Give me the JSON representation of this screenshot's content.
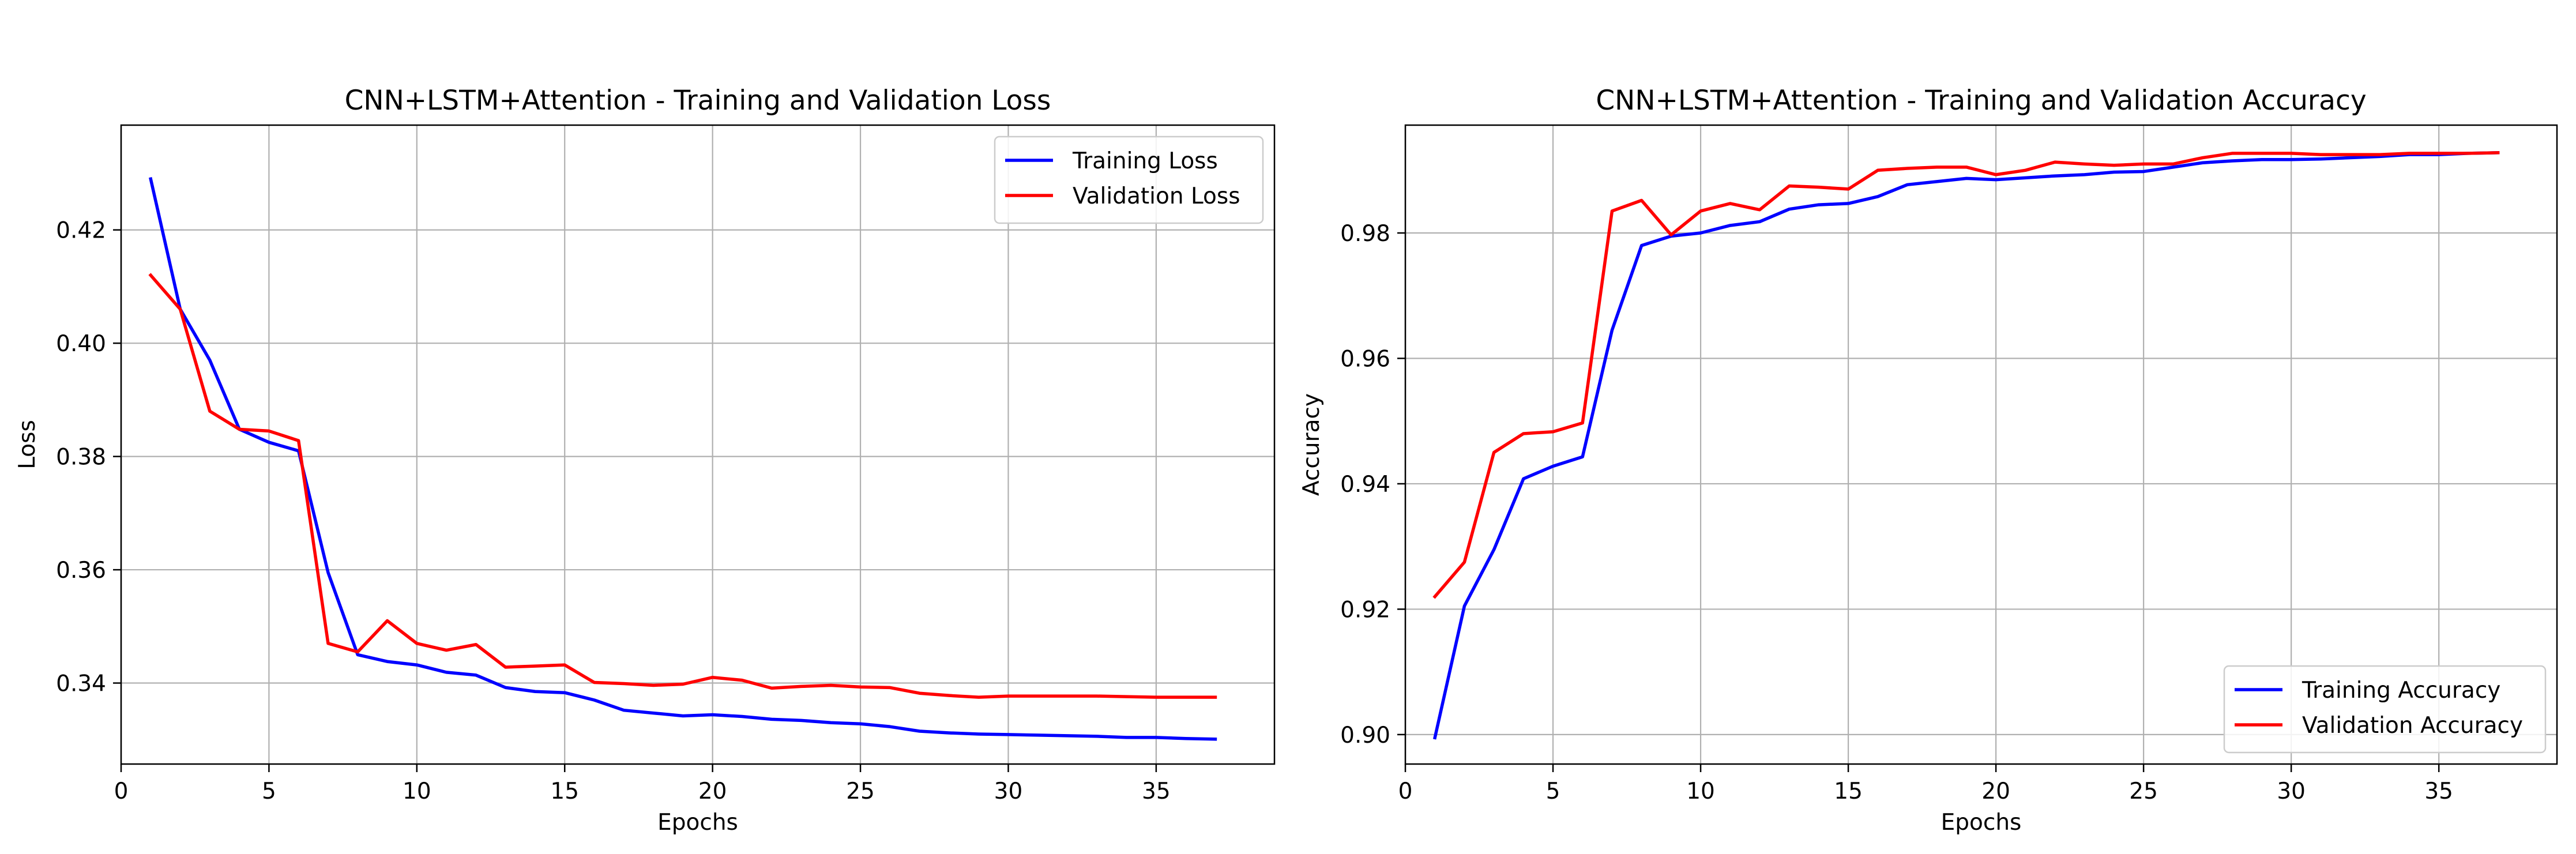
{
  "chart_data": [
    {
      "type": "line",
      "title": "CNN+LSTM+Attention - Training and Validation Loss",
      "xlabel": "Epochs",
      "ylabel": "Loss",
      "xlim": [
        0,
        39
      ],
      "ylim": [
        0.3257,
        0.4385
      ],
      "xticks": [
        0,
        5,
        10,
        15,
        20,
        25,
        30,
        35
      ],
      "yticks": [
        0.34,
        0.36,
        0.38,
        0.4,
        0.42
      ],
      "ytick_labels": [
        "0.34",
        "0.36",
        "0.38",
        "0.40",
        "0.42"
      ],
      "grid": true,
      "legend_position": "top-right",
      "x": [
        1,
        2,
        3,
        4,
        5,
        6,
        7,
        8,
        9,
        10,
        11,
        12,
        13,
        14,
        15,
        16,
        17,
        18,
        19,
        20,
        21,
        22,
        23,
        24,
        25,
        26,
        27,
        28,
        29,
        30,
        31,
        32,
        33,
        34,
        35,
        36,
        37
      ],
      "series": [
        {
          "name": "Training Loss",
          "color": "#0000ff",
          "values": [
            0.429,
            0.406,
            0.397,
            0.3848,
            0.3825,
            0.381,
            0.3595,
            0.345,
            0.3438,
            0.3432,
            0.3419,
            0.3414,
            0.3392,
            0.3385,
            0.3383,
            0.337,
            0.3352,
            0.3347,
            0.3342,
            0.3344,
            0.3341,
            0.3336,
            0.3334,
            0.333,
            0.3328,
            0.3323,
            0.3315,
            0.3312,
            0.331,
            0.3309,
            0.3308,
            0.3307,
            0.3306,
            0.3304,
            0.3304,
            0.3302,
            0.3301
          ]
        },
        {
          "name": "Validation Loss",
          "color": "#ff0000",
          "values": [
            0.412,
            0.406,
            0.388,
            0.3848,
            0.3845,
            0.3828,
            0.347,
            0.3455,
            0.351,
            0.347,
            0.3458,
            0.3468,
            0.3428,
            0.343,
            0.3432,
            0.3401,
            0.3399,
            0.3396,
            0.3398,
            0.341,
            0.3405,
            0.3391,
            0.3394,
            0.3396,
            0.3393,
            0.3392,
            0.3382,
            0.3378,
            0.3375,
            0.3377,
            0.3377,
            0.3377,
            0.3377,
            0.3376,
            0.3375,
            0.3375,
            0.3375
          ]
        }
      ]
    },
    {
      "type": "line",
      "title": "CNN+LSTM+Attention - Training and Validation Accuracy",
      "xlabel": "Epochs",
      "ylabel": "Accuracy",
      "xlim": [
        0,
        39
      ],
      "ylim": [
        0.8953,
        0.9972
      ],
      "xticks": [
        0,
        5,
        10,
        15,
        20,
        25,
        30,
        35
      ],
      "yticks": [
        0.9,
        0.92,
        0.94,
        0.96,
        0.98
      ],
      "ytick_labels": [
        "0.90",
        "0.92",
        "0.94",
        "0.96",
        "0.98"
      ],
      "grid": true,
      "legend_position": "bottom-right",
      "x": [
        1,
        2,
        3,
        4,
        5,
        6,
        7,
        8,
        9,
        10,
        11,
        12,
        13,
        14,
        15,
        16,
        17,
        18,
        19,
        20,
        21,
        22,
        23,
        24,
        25,
        26,
        27,
        28,
        29,
        30,
        31,
        32,
        33,
        34,
        35,
        36,
        37
      ],
      "series": [
        {
          "name": "Training Accuracy",
          "color": "#0000ff",
          "values": [
            0.8995,
            0.9205,
            0.9295,
            0.9408,
            0.9428,
            0.9443,
            0.9645,
            0.978,
            0.9795,
            0.98,
            0.9812,
            0.9818,
            0.9838,
            0.9845,
            0.9847,
            0.9858,
            0.9877,
            0.9882,
            0.9887,
            0.9885,
            0.9888,
            0.9891,
            0.9893,
            0.9897,
            0.9898,
            0.9905,
            0.9912,
            0.9915,
            0.9917,
            0.9917,
            0.9918,
            0.992,
            0.9922,
            0.9925,
            0.9925,
            0.9927,
            0.9928
          ]
        },
        {
          "name": "Validation Accuracy",
          "color": "#ff0000",
          "values": [
            0.922,
            0.9275,
            0.945,
            0.948,
            0.9483,
            0.9497,
            0.9835,
            0.9852,
            0.9797,
            0.9835,
            0.9847,
            0.9837,
            0.9875,
            0.9873,
            0.987,
            0.99,
            0.9903,
            0.9905,
            0.9905,
            0.9893,
            0.99,
            0.9913,
            0.991,
            0.9908,
            0.991,
            0.991,
            0.992,
            0.9927,
            0.9927,
            0.9927,
            0.9925,
            0.9925,
            0.9925,
            0.9927,
            0.9927,
            0.9927,
            0.9928
          ]
        }
      ]
    }
  ]
}
